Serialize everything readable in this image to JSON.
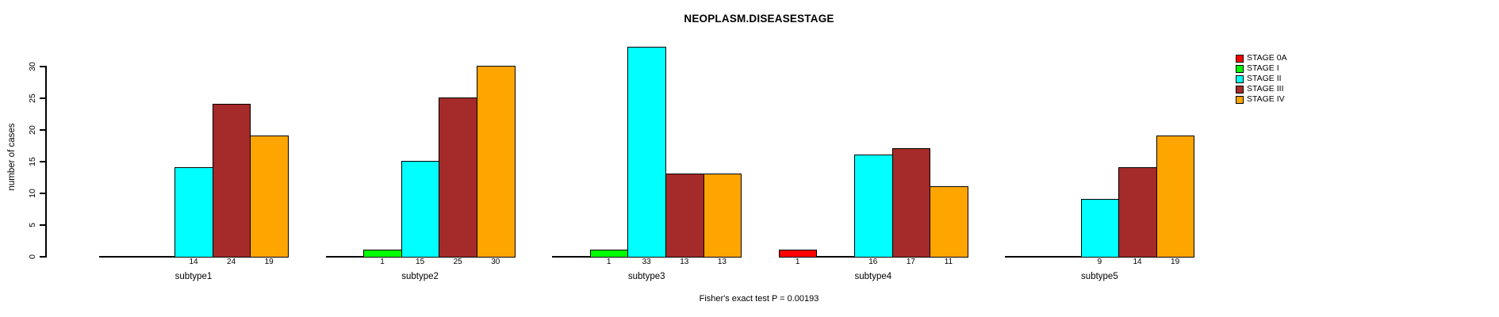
{
  "title": "NEOPLASM.DISEASESTAGE",
  "ylabel": "number of cases",
  "footer": "Fisher's exact test P = 0.00193",
  "chart_data": {
    "type": "bar",
    "title": "NEOPLASM.DISEASESTAGE",
    "xlabel": "",
    "ylabel": "number of cases",
    "categories": [
      "subtype1",
      "subtype2",
      "subtype3",
      "subtype4",
      "subtype5"
    ],
    "series": [
      {
        "name": "STAGE 0A",
        "color": "#ff0000",
        "values": [
          0,
          0,
          0,
          1,
          0
        ]
      },
      {
        "name": "STAGE I",
        "color": "#00ff00",
        "values": [
          0,
          1,
          1,
          0,
          0
        ]
      },
      {
        "name": "STAGE II",
        "color": "#00ffff",
        "values": [
          14,
          15,
          33,
          16,
          9
        ]
      },
      {
        "name": "STAGE III",
        "color": "#a52a2a",
        "values": [
          24,
          25,
          13,
          17,
          14
        ]
      },
      {
        "name": "STAGE IV",
        "color": "#ffa500",
        "values": [
          19,
          30,
          13,
          11,
          19
        ]
      }
    ],
    "yticks": [
      0,
      5,
      10,
      15,
      20,
      25,
      30
    ],
    "ylim": [
      0,
      33
    ],
    "bar_value_labels_shown": true,
    "zero_bars_hidden": true,
    "grid": false,
    "legend_position": "right",
    "annotation": "Fisher's exact test P = 0.00193"
  }
}
